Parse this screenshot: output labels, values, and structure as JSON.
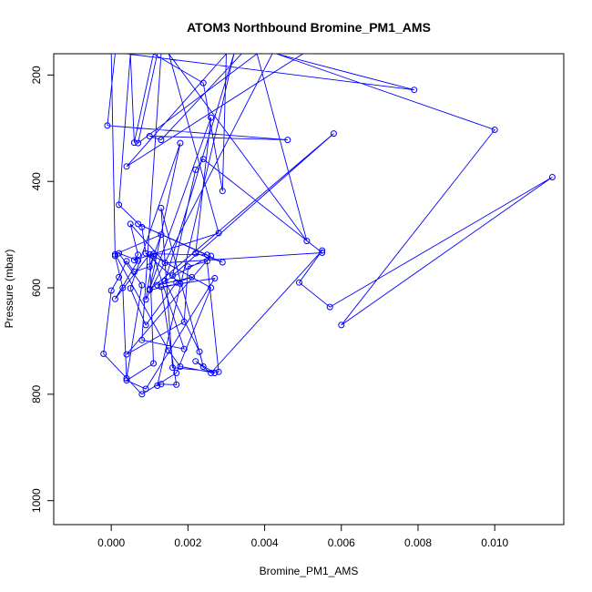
{
  "chart_data": {
    "type": "line",
    "title": "ATOM3 Northbound Bromine_PM1_AMS",
    "xlabel": "Bromine_PM1_AMS",
    "ylabel": "Pressure (mbar)",
    "xlim": [
      -0.0015,
      0.0118
    ],
    "ylim": [
      1045,
      160
    ],
    "y_reversed": true,
    "x_ticks": [
      {
        "value": 0.0,
        "label": "0.000"
      },
      {
        "value": 0.002,
        "label": "0.002"
      },
      {
        "value": 0.004,
        "label": "0.004"
      },
      {
        "value": 0.006,
        "label": "0.006"
      },
      {
        "value": 0.008,
        "label": "0.008"
      },
      {
        "value": 0.01,
        "label": "0.010"
      }
    ],
    "y_ticks": [
      {
        "value": 200,
        "label": "200"
      },
      {
        "value": 400,
        "label": "400"
      },
      {
        "value": 600,
        "label": "600"
      },
      {
        "value": 800,
        "label": "800"
      },
      {
        "value": 1000,
        "label": "1000"
      }
    ],
    "grid": false,
    "series_color": "#0000ff",
    "point_style": "open-circle",
    "x": [
      0.0004,
      0.0008,
      0.0015,
      0.0013,
      0.0006,
      0.0025,
      0.0002,
      0.0017,
      0.0003,
      0.001,
      0.0024,
      0.0003,
      0.0011,
      0.002,
      0.0042,
      0.0008,
      0.0003,
      0.0001,
      -0.0001,
      0.0046,
      0.001,
      0.0013,
      0.0034,
      0.0053,
      0.0012,
      0.0007,
      0.0038,
      0.0051,
      0.0015,
      0.005,
      0.0004,
      0.003,
      0.0029,
      0.0024,
      0.0011,
      0.0006,
      0.0005,
      0.0002,
      0.0008,
      0.0009,
      0.0018,
      0.001,
      0.0058,
      0.0016,
      0.0022,
      0.0024,
      0.0055,
      0.0014,
      0.0005,
      0.0007,
      0.0006,
      0.0028,
      0.0015,
      0.0034,
      0.0042,
      0.0009,
      0.0011,
      0.0025,
      0.0007,
      0.0029,
      0.0022,
      0.0026,
      0.001,
      0.0018,
      0.0005,
      0.0009,
      0.0017,
      0.0021,
      0.0012,
      0.0026,
      0.0004,
      0.0019,
      0.002,
      0.0025,
      0.0028,
      0.0016,
      0.0013,
      0.0024,
      0.0023,
      0.0014,
      0.0032,
      0.0012,
      0.0013,
      0.0017,
      0.0013,
      0.0027,
      0.0009,
      0.0004,
      0.0011,
      0.001,
      0.0001,
      0.0007,
      0.0002,
      0.0008,
      0.0004,
      0.0003,
      0.0001,
      0.0,
      0.0004,
      0.0079,
      0.0043,
      0.01,
      0.006,
      0.0115,
      0.0057,
      0.0049,
      0.0055,
      0.0026,
      0.0022,
      0.0027,
      0.0018,
      0.0015,
      0.0001,
      0.0013,
      0.001,
      0.0006,
      0.0004,
      0.0002,
      0.0,
      -0.0002,
      0.0008,
      0.0017,
      0.0026,
      0.0011,
      0.0019,
      0.0008,
      0.0013,
      0.002
    ],
    "y": [
      160,
      160,
      160,
      160,
      160,
      160,
      160,
      160,
      160,
      160,
      160,
      160,
      160,
      160,
      160,
      160,
      160,
      160,
      295,
      322,
      315,
      322,
      160,
      160,
      160,
      328,
      160,
      512,
      160,
      160,
      372,
      160,
      418,
      215,
      160,
      327,
      160,
      444,
      486,
      535,
      592,
      604,
      310,
      577,
      378,
      358,
      534,
      553,
      480,
      538,
      548,
      497,
      160,
      160,
      160,
      622,
      536,
      538,
      480,
      552,
      535,
      280,
      602,
      328,
      601,
      670,
      590,
      580,
      595,
      540,
      725,
      664,
      560,
      550,
      758,
      750,
      450,
      748,
      720,
      587,
      160,
      784,
      781,
      782,
      598,
      582,
      790,
      774,
      742,
      537,
      621,
      549,
      535,
      595,
      770,
      600,
      540,
      160,
      160,
      228,
      160,
      303,
      670,
      392,
      636,
      590,
      530,
      760,
      738,
      760,
      748,
      718,
      537,
      500,
      560,
      570,
      550,
      580,
      605,
      724,
      800,
      760,
      600,
      540,
      715,
      698,
      160,
      160
    ]
  }
}
